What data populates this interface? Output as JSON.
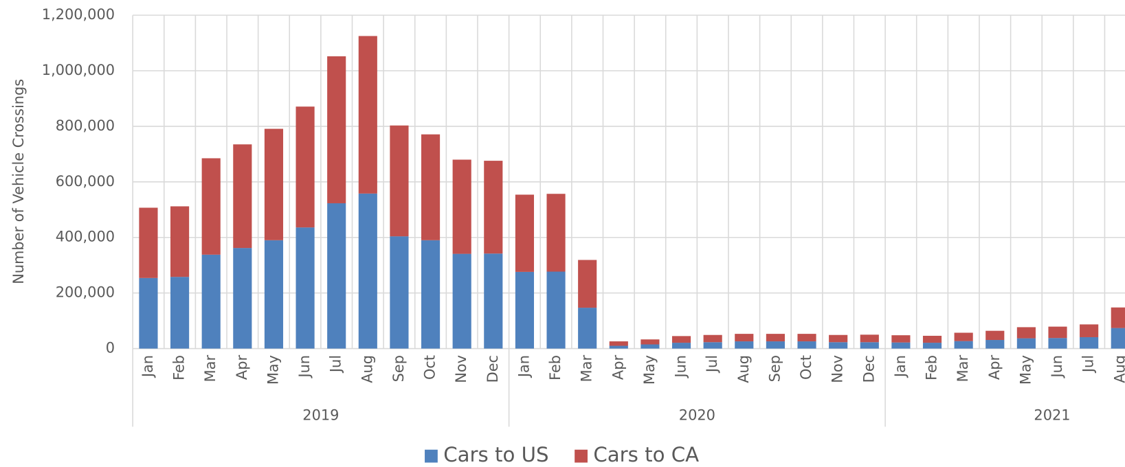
{
  "chart_data": {
    "type": "stacked-bar",
    "y_axis_label": "Number of Vehicle Crossings",
    "categories": [
      "Jan",
      "Feb",
      "Mar",
      "Apr",
      "May",
      "Jun",
      "Jul",
      "Aug",
      "Sep",
      "Oct",
      "Nov",
      "Dec",
      "Jan",
      "Feb",
      "Mar",
      "Apr",
      "May",
      "Jun",
      "Jul",
      "Aug",
      "Sep",
      "Oct",
      "Nov",
      "Dec",
      "Jan",
      "Feb",
      "Mar",
      "Apr",
      "May",
      "Jun",
      "Jul",
      "Aug"
    ],
    "groups": [
      "2019",
      "2020",
      "2021"
    ],
    "series": [
      {
        "name": "Cars to US",
        "color": "#4f81bd",
        "values": [
          254000,
          258000,
          338000,
          362000,
          390000,
          436000,
          523000,
          558000,
          404000,
          390000,
          341000,
          342000,
          276000,
          277000,
          147000,
          10000,
          15000,
          21000,
          23000,
          26000,
          26000,
          26000,
          23000,
          23000,
          22000,
          21000,
          27000,
          31000,
          37000,
          38000,
          41000,
          74000
        ]
      },
      {
        "name": "Cars to CA",
        "color": "#c0504d",
        "values": [
          253000,
          254000,
          347000,
          373000,
          401000,
          435000,
          529000,
          567000,
          399000,
          381000,
          339000,
          334000,
          278000,
          280000,
          172000,
          16000,
          18000,
          24000,
          26000,
          27000,
          27000,
          27000,
          26000,
          27000,
          26000,
          25000,
          30000,
          33000,
          40000,
          41000,
          46000,
          74000
        ]
      }
    ],
    "ylim": [
      0,
      1200000
    ],
    "yticks": [
      0,
      {
        "value": 200000,
        "label": "200,000"
      },
      {
        "value": 400000,
        "label": "400,000"
      },
      {
        "value": 600000,
        "label": "600,000"
      },
      {
        "value": 800000,
        "label": "800,000"
      },
      {
        "value": 1000000,
        "label": "1,000,000"
      },
      {
        "value": 1200000,
        "label": "1,200,000"
      }
    ],
    "grid": true,
    "legend": "bottom"
  }
}
